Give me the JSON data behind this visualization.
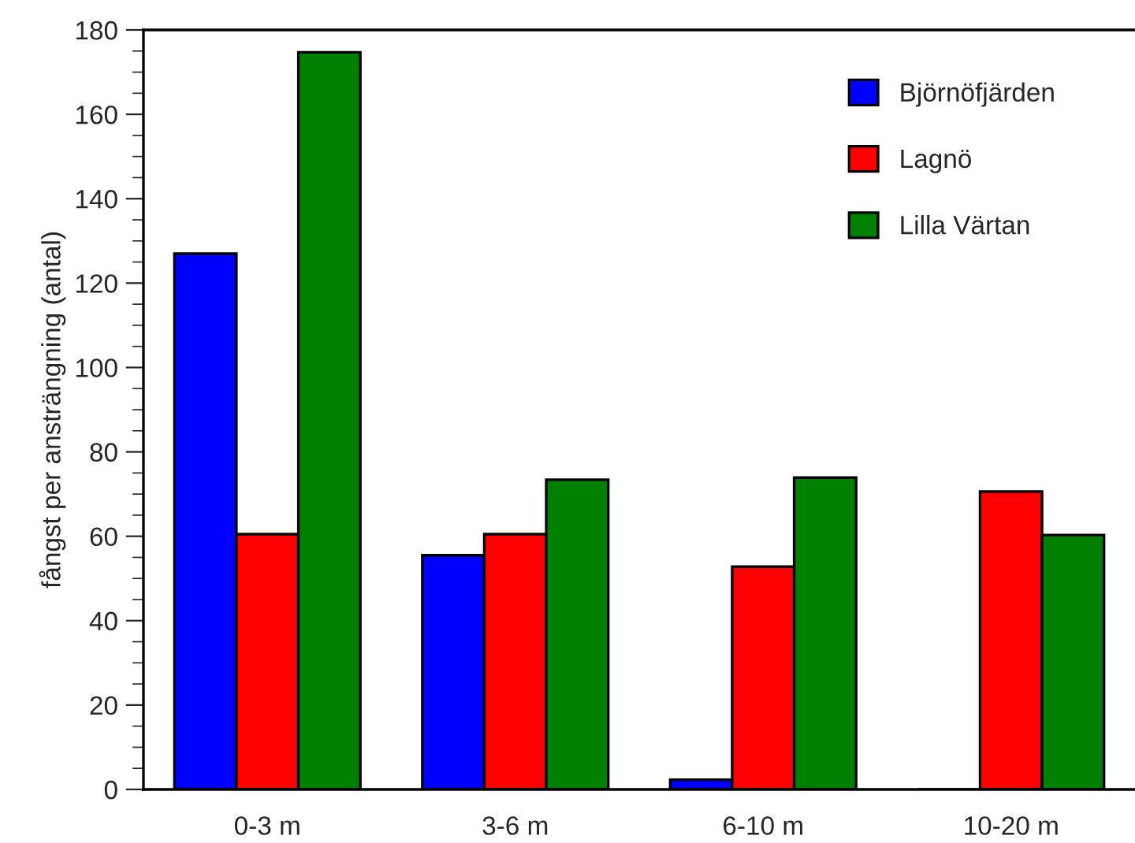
{
  "chart_data": {
    "type": "bar",
    "ylabel": "fångst per ansträngning (antal)",
    "categories": [
      "0-3 m",
      "3-6 m",
      "6-10 m",
      "10-20 m"
    ],
    "series": [
      {
        "name": "Björnöfjärden",
        "color": "#0000ff",
        "values": [
          127,
          55.5,
          2.3,
          0
        ]
      },
      {
        "name": "Lagnö",
        "color": "#ff0000",
        "values": [
          60.5,
          60.5,
          52.8,
          70.6
        ]
      },
      {
        "name": "Lilla Värtan",
        "color": "#008000",
        "values": [
          174.7,
          73.4,
          73.9,
          60.3
        ]
      }
    ],
    "ylim": [
      0,
      180
    ],
    "yticks": [
      0,
      20,
      40,
      60,
      80,
      100,
      120,
      140,
      160,
      180
    ],
    "grid": false,
    "legend": "top right"
  }
}
